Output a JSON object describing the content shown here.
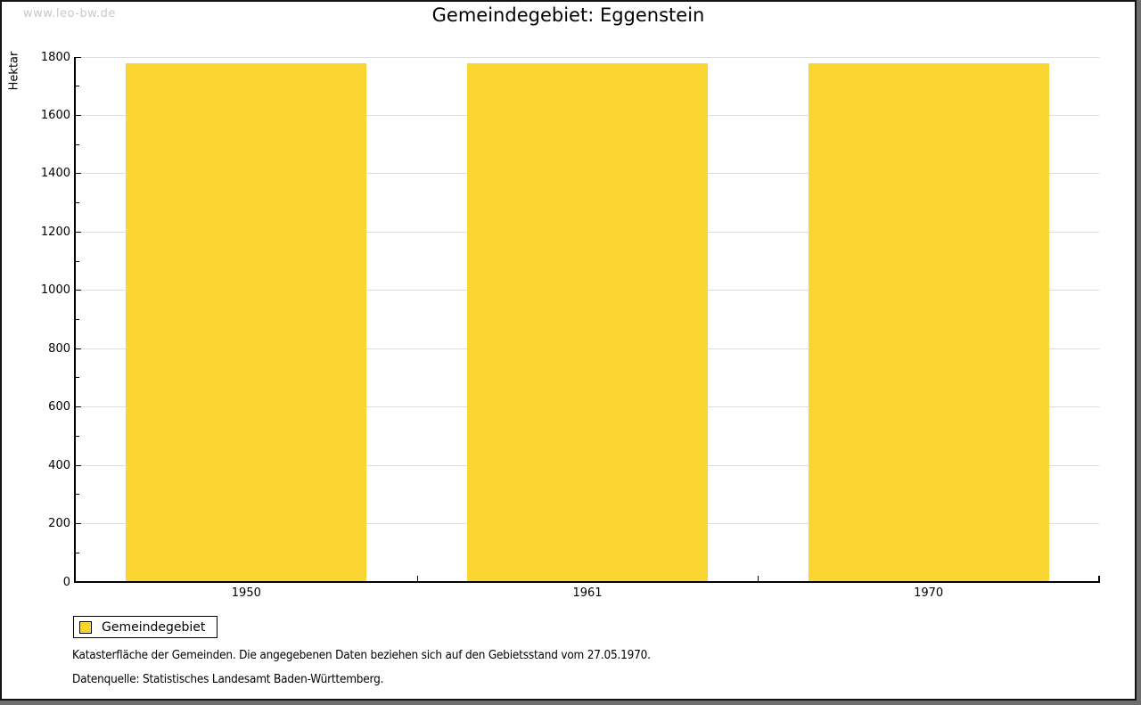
{
  "watermark": "www.leo-bw.de",
  "chart_data": {
    "type": "bar",
    "title": "Gemeindegebiet: Eggenstein",
    "categories": [
      "1950",
      "1961",
      "1970"
    ],
    "series": [
      {
        "name": "Gemeindegebiet",
        "values": [
          1780,
          1780,
          1780
        ]
      }
    ],
    "xlabel": "",
    "ylabel": "Hektar",
    "ylim": [
      0,
      1800
    ],
    "yticks": [
      0,
      200,
      400,
      600,
      800,
      1000,
      1200,
      1400,
      1600,
      1800
    ],
    "y_minor_tick_step": 100,
    "grid": "horizontal-major-only",
    "legend_position": "bottom-left",
    "bar_color": "#FBD531",
    "gridline_color": "#dddddd"
  },
  "legend": {
    "items": [
      {
        "label": "Gemeindegebiet",
        "color": "#FBD531"
      }
    ]
  },
  "footnotes": {
    "line1": "Katasterfläche der Gemeinden. Die angegebenen Daten beziehen sich auf den Gebietsstand vom 27.05.1970.",
    "line2": "Datenquelle: Statistisches Landesamt Baden-Württemberg."
  },
  "colors": {
    "bar": "#FBD531",
    "gridline": "#dddddd",
    "watermark": "#c9c9c9",
    "frame_shadow": "#6e6e6e",
    "axis": "#000000"
  }
}
